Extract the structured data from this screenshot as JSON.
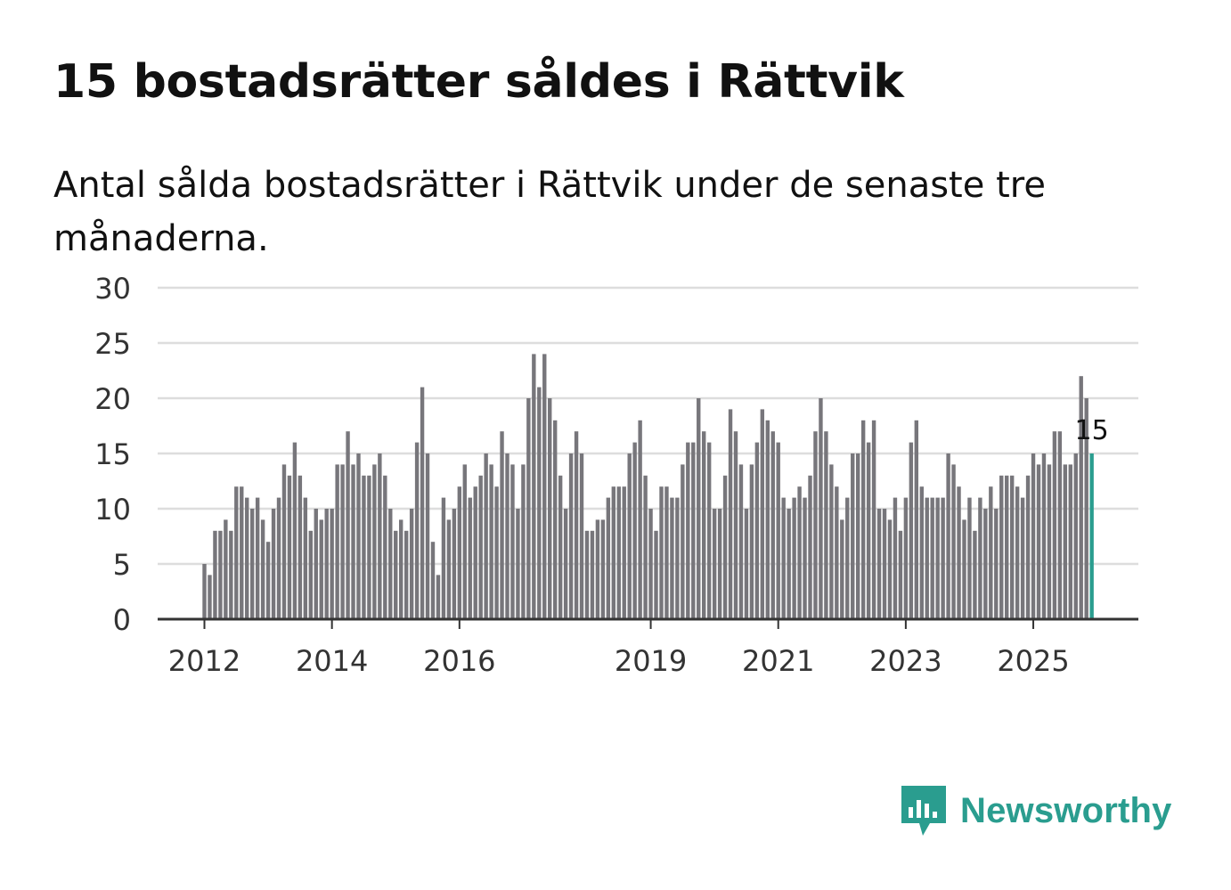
{
  "title": "15 bostadsrätter såldes i Rättvik",
  "subtitle": "Antal sålda bostadsrätter i Rättvik under de senaste tre månaderna.",
  "brand": {
    "name": "Newsworthy",
    "color": "#2a9d8f",
    "icon": "newsworthy-logo-icon"
  },
  "colors": {
    "bar": "#77767b",
    "highlight": "#2a9d8f",
    "grid": "#dddddd",
    "axis": "#333333"
  },
  "chart_data": {
    "type": "bar",
    "title": "Antal sålda bostadsrätter i Rättvik",
    "xlabel": "",
    "ylabel": "",
    "ylim": [
      0,
      30
    ],
    "yticks": [
      0,
      5,
      10,
      15,
      20,
      25,
      30
    ],
    "xticks": [
      {
        "label": "2012",
        "index": 0
      },
      {
        "label": "2014",
        "index": 24
      },
      {
        "label": "2016",
        "index": 48
      },
      {
        "label": "2019",
        "index": 84
      },
      {
        "label": "2021",
        "index": 108
      },
      {
        "label": "2023",
        "index": 132
      },
      {
        "label": "2025",
        "index": 156
      }
    ],
    "start": "2012-01",
    "highlight_last": true,
    "last_value_label": "15",
    "values": [
      5,
      4,
      8,
      8,
      9,
      8,
      12,
      12,
      11,
      10,
      11,
      9,
      7,
      10,
      11,
      14,
      13,
      16,
      13,
      11,
      8,
      10,
      9,
      10,
      10,
      14,
      14,
      17,
      14,
      15,
      13,
      13,
      14,
      15,
      13,
      10,
      8,
      9,
      8,
      10,
      16,
      21,
      15,
      7,
      4,
      11,
      9,
      10,
      12,
      14,
      11,
      12,
      13,
      15,
      14,
      12,
      17,
      15,
      14,
      10,
      14,
      20,
      24,
      21,
      24,
      20,
      18,
      13,
      10,
      15,
      17,
      15,
      8,
      8,
      9,
      9,
      11,
      12,
      12,
      12,
      15,
      16,
      18,
      13,
      10,
      8,
      12,
      12,
      11,
      11,
      14,
      16,
      16,
      20,
      17,
      16,
      10,
      10,
      13,
      19,
      17,
      14,
      10,
      14,
      16,
      19,
      18,
      17,
      16,
      11,
      10,
      11,
      12,
      11,
      13,
      17,
      20,
      17,
      14,
      12,
      9,
      11,
      15,
      15,
      18,
      16,
      18,
      10,
      10,
      9,
      11,
      8,
      11,
      16,
      18,
      12,
      11,
      11,
      11,
      11,
      15,
      14,
      12,
      9,
      11,
      8,
      11,
      10,
      12,
      10,
      13,
      13,
      13,
      12,
      11,
      13,
      15,
      14,
      15,
      14,
      17,
      17,
      14,
      14,
      15,
      22,
      20,
      15
    ]
  }
}
